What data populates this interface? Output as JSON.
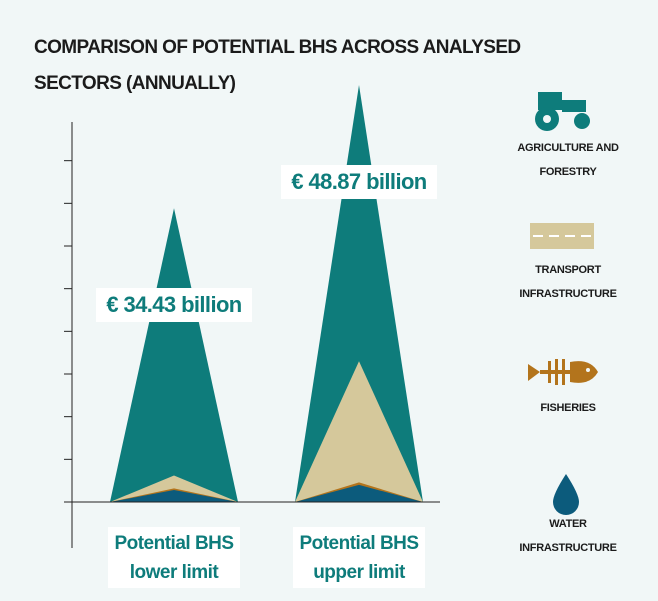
{
  "chart_data": {
    "type": "peak",
    "title": "COMPARISON OF POTENTIAL BHS ACROSS ANALYSED SECTORS (ANNUALLY)",
    "categories": [
      "Potential BHS lower limit",
      "Potential BHS upper limit"
    ],
    "totals": [
      34.43,
      48.87
    ],
    "total_labels": [
      "€ 34.43 billion",
      "€ 48.87 billion"
    ],
    "series": [
      {
        "name": "AGRICULTURE AND FORESTRY",
        "color": "#0e7c7b",
        "values": [
          31.33,
          32.37
        ]
      },
      {
        "name": "TRANSPORT INFRASTRUCTURE",
        "color": "#d5c89b",
        "values": [
          1.5,
          14.2
        ]
      },
      {
        "name": "FISHERIES",
        "color": "#b3741c",
        "values": [
          0.2,
          0.3
        ]
      },
      {
        "name": "WATER INFRASTRUCTURE",
        "color": "#0c5b7c",
        "values": [
          1.4,
          2.0
        ]
      }
    ],
    "ylim": [
      0,
      45
    ],
    "yticks": [
      0,
      5,
      10,
      15,
      20,
      25,
      30,
      35,
      40
    ]
  }
}
